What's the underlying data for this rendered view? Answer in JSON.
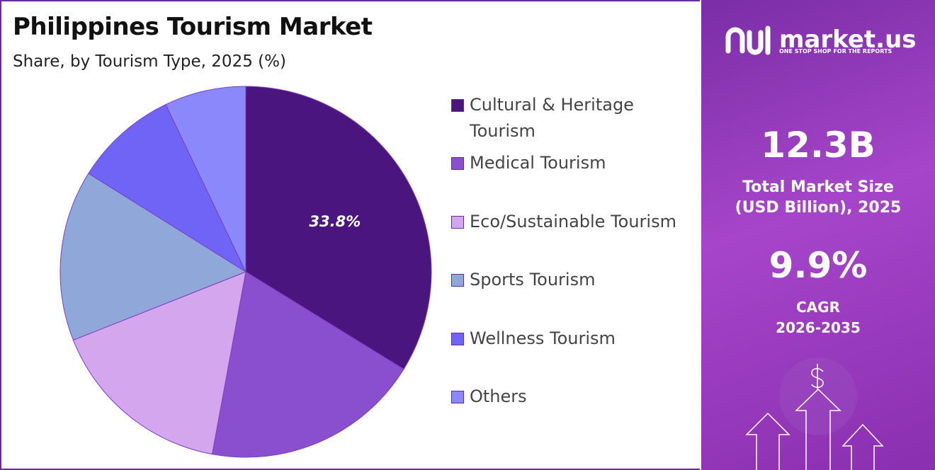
{
  "chart_data": {
    "type": "pie",
    "title": "Philippines Tourism Market",
    "subtitle": "Share, by Tourism Type, 2025 (%)",
    "categories": [
      "Cultural & Heritage Tourism",
      "Medical Tourism",
      "Eco/Sustainable Tourism",
      "Sports Tourism",
      "Wellness Tourism",
      "Others"
    ],
    "values": [
      33.8,
      19.1,
      16.1,
      14.9,
      9.0,
      7.1
    ],
    "value_labels": [
      "33.8%",
      null,
      null,
      null,
      null,
      null
    ],
    "colors": [
      "#4b1580",
      "#8a4fcf",
      "#d4a6ee",
      "#8fa8d9",
      "#6f64f5",
      "#8b88fb"
    ],
    "legend": "right"
  },
  "panel": {
    "brand": "market.us",
    "tagline": "ONE STOP SHOP FOR THE REPORTS",
    "market_size": "12.3B",
    "market_size_label": [
      "Total Market Size",
      "(USD Billion), 2025"
    ],
    "cagr": "9.9%",
    "cagr_label": [
      "CAGR",
      "2026-2035"
    ]
  }
}
